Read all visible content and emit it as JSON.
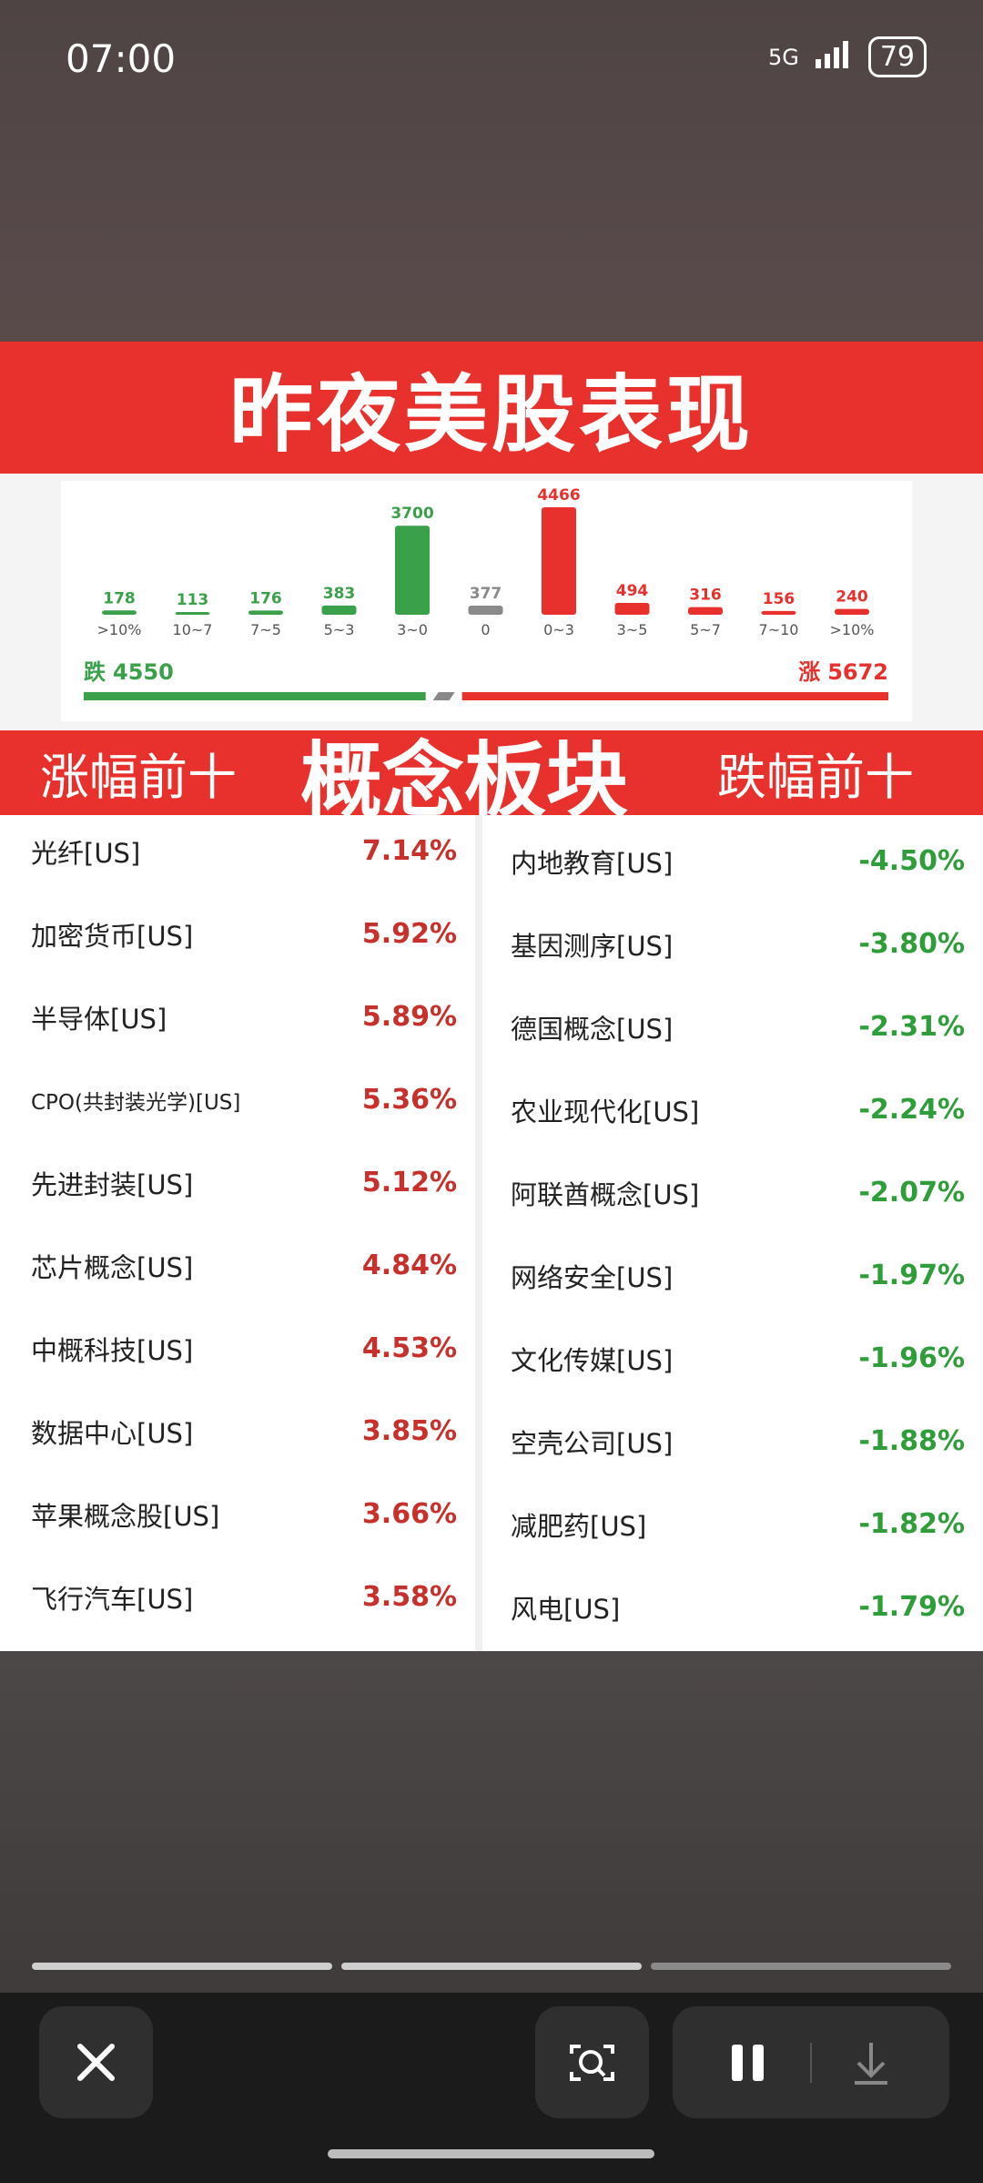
{
  "status_bar": {
    "time": "07:00",
    "network": "5G",
    "battery": "79"
  },
  "banner": {
    "title": "昨夜美股表现"
  },
  "chart_data": {
    "type": "bar",
    "categories": [
      ">10%",
      "10~7",
      "7~5",
      "5~3",
      "3~0",
      "0",
      "0~3",
      "3~5",
      "5~7",
      "7~10",
      ">10%"
    ],
    "values": [
      178,
      113,
      176,
      383,
      3700,
      377,
      4466,
      494,
      316,
      156,
      240
    ],
    "colors": [
      "#3aa14a",
      "#3aa14a",
      "#3aa14a",
      "#3aa14a",
      "#3aa14a",
      "#8a8a8a",
      "#e8312c",
      "#e8312c",
      "#e8312c",
      "#e8312c",
      "#e8312c"
    ]
  },
  "summary": {
    "fall": {
      "label": "跌",
      "value": 4550,
      "color": "#3aa14a"
    },
    "rise": {
      "label": "涨",
      "value": 5672,
      "color": "#e8312c"
    }
  },
  "sections": {
    "gainers": "涨幅前十",
    "title": "概念板块",
    "losers": "跌幅前十"
  },
  "gainers": [
    [
      "光纤[US]",
      "7.14%"
    ],
    [
      "加密货币[US]",
      "5.92%"
    ],
    [
      "半导体[US]",
      "5.89%"
    ],
    [
      "CPO(共封装光学)[US]",
      "5.36%"
    ],
    [
      "先进封装[US]",
      "5.12%"
    ],
    [
      "芯片概念[US]",
      "4.84%"
    ],
    [
      "中概科技[US]",
      "4.53%"
    ],
    [
      "数据中心[US]",
      "3.85%"
    ],
    [
      "苹果概念股[US]",
      "3.66%"
    ],
    [
      "飞行汽车[US]",
      "3.58%"
    ]
  ],
  "losers": [
    [
      "内地教育[US]",
      "-4.50%"
    ],
    [
      "基因测序[US]",
      "-3.80%"
    ],
    [
      "德国概念[US]",
      "-2.31%"
    ],
    [
      "农业现代化[US]",
      "-2.24%"
    ],
    [
      "阿联酋概念[US]",
      "-2.07%"
    ],
    [
      "网络安全[US]",
      "-1.97%"
    ],
    [
      "文化传媒[US]",
      "-1.96%"
    ],
    [
      "空壳公司[US]",
      "-1.88%"
    ],
    [
      "减肥药[US]",
      "-1.82%"
    ],
    [
      "风电[US]",
      "-1.79%"
    ]
  ]
}
